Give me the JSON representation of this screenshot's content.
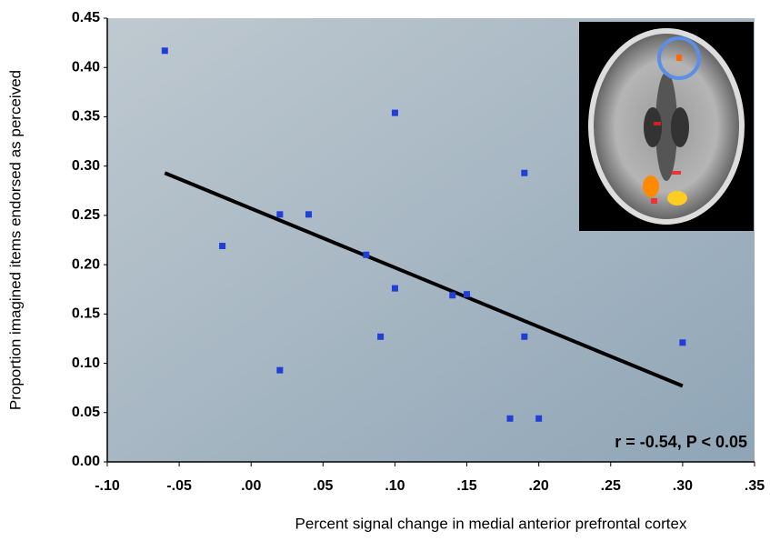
{
  "chart_data": {
    "type": "scatter",
    "x_label": "Percent signal change in medial anterior prefrontal cortex",
    "y_label": "Proportion imagined items endorsed as perceived",
    "annotation": "r = -0.54, P < 0.05",
    "x": [
      -0.06,
      0.1,
      0.19,
      0.02,
      0.04,
      -0.02,
      0.08,
      0.1,
      0.14,
      0.15,
      0.09,
      0.19,
      0.02,
      0.3,
      0.18,
      0.2
    ],
    "values": [
      0.417,
      0.354,
      0.293,
      0.251,
      0.251,
      0.219,
      0.21,
      0.176,
      0.169,
      0.17,
      0.127,
      0.127,
      0.093,
      0.121,
      0.044,
      0.044
    ],
    "color": "#1f3fd6",
    "trend_line": {
      "x": [
        -0.06,
        0.3
      ],
      "y": [
        0.293,
        0.077
      ],
      "color": "#000000"
    },
    "xlim": [
      -0.1,
      0.35
    ],
    "ylim": [
      0,
      0.45
    ],
    "xticks": [
      {
        "value": -0.1,
        "label": "-.10"
      },
      {
        "value": -0.05,
        "label": "-.05"
      },
      {
        "value": 0,
        "label": ".00"
      },
      {
        "value": 0.05,
        "label": ".05"
      },
      {
        "value": 0.1,
        "label": ".10"
      },
      {
        "value": 0.15,
        "label": ".15"
      },
      {
        "value": 0.2,
        "label": ".20"
      },
      {
        "value": 0.25,
        "label": ".25"
      },
      {
        "value": 0.3,
        "label": ".30"
      },
      {
        "value": 0.35,
        "label": ".35"
      }
    ],
    "yticks": [
      {
        "value": 0,
        "label": "0.00"
      },
      {
        "value": 0.05,
        "label": "0.05"
      },
      {
        "value": 0.1,
        "label": "0.10"
      },
      {
        "value": 0.15,
        "label": "0.15"
      },
      {
        "value": 0.2,
        "label": "0.20"
      },
      {
        "value": 0.25,
        "label": "0.25"
      },
      {
        "value": 0.3,
        "label": "0.30"
      },
      {
        "value": 0.35,
        "label": "0.35"
      },
      {
        "value": 0.4,
        "label": "0.40"
      },
      {
        "value": 0.45,
        "label": "0.45"
      }
    ]
  }
}
